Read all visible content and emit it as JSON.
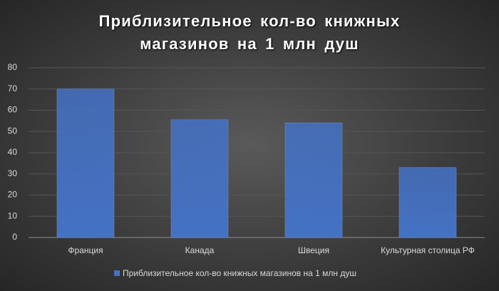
{
  "chart_data": {
    "type": "bar",
    "title": "Приблизительное кол-во книжных магазинов на 1 млн душ",
    "categories": [
      "Франция",
      "Канада",
      "Швеция",
      "Культурная столица РФ"
    ],
    "series": [
      {
        "name": "Приблизительное кол-во книжных магазинов на 1 млн душ",
        "color": "#4472c4",
        "values": [
          70,
          55.5,
          54,
          33
        ]
      }
    ],
    "ylim": [
      0,
      80
    ],
    "yticks": [
      0,
      10,
      20,
      30,
      40,
      50,
      60,
      70,
      80
    ],
    "grid": true,
    "legend": "bottom"
  }
}
